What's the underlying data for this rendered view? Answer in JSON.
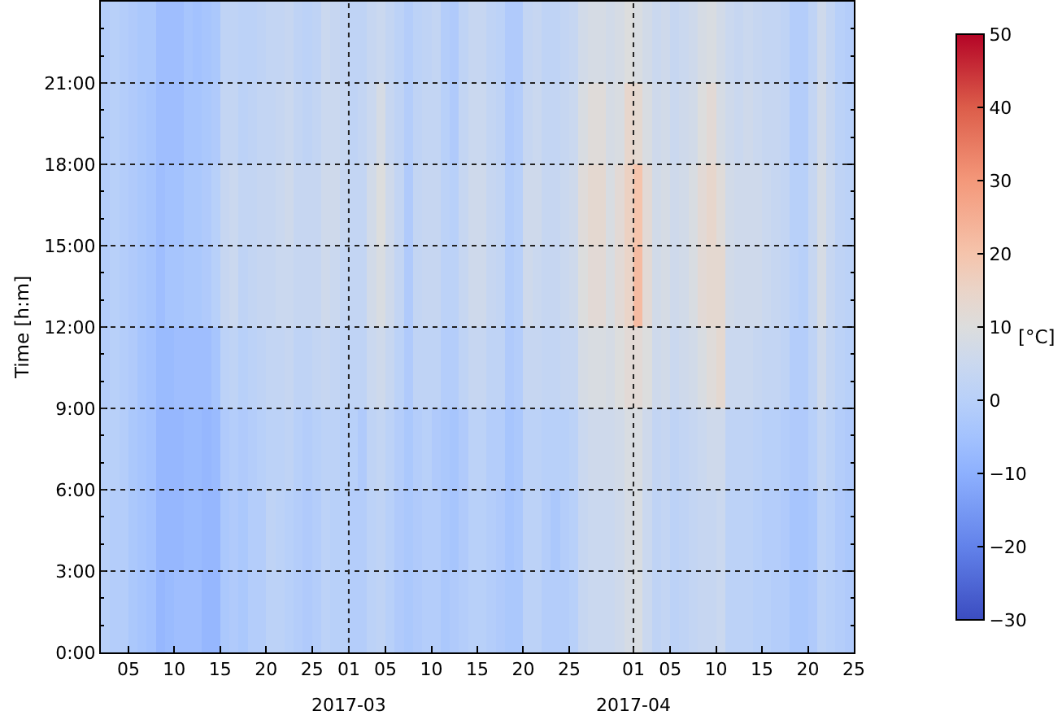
{
  "chart_data": {
    "type": "heatmap",
    "ylabel": "Time [h:m]",
    "clabel": "[°C]",
    "grid": true,
    "x": [
      "2017-02-02T12:00",
      "2017-02-03T12:00",
      "2017-02-04T12:00",
      "2017-02-05T12:00",
      "2017-02-06T12:00",
      "2017-02-07T12:00",
      "2017-02-08T12:00",
      "2017-02-09T12:00",
      "2017-02-10T12:00",
      "2017-02-11T12:00",
      "2017-02-12T12:00",
      "2017-02-13T12:00",
      "2017-02-14T12:00",
      "2017-02-15T12:00",
      "2017-02-16T12:00",
      "2017-02-17T12:00",
      "2017-02-18T12:00",
      "2017-02-19T12:00",
      "2017-02-20T12:00",
      "2017-02-21T12:00",
      "2017-02-22T12:00",
      "2017-02-23T12:00",
      "2017-02-24T12:00",
      "2017-02-25T12:00",
      "2017-02-26T12:00",
      "2017-02-27T12:00",
      "2017-02-28T12:00",
      "2017-03-01T12:00",
      "2017-03-02T12:00",
      "2017-03-03T12:00",
      "2017-03-04T12:00",
      "2017-03-05T12:00",
      "2017-03-06T12:00",
      "2017-03-07T12:00",
      "2017-03-08T12:00",
      "2017-03-09T12:00",
      "2017-03-10T12:00",
      "2017-03-11T12:00",
      "2017-03-12T12:00",
      "2017-03-13T12:00",
      "2017-03-14T12:00",
      "2017-03-15T12:00",
      "2017-03-16T12:00",
      "2017-03-17T12:00",
      "2017-03-18T12:00",
      "2017-03-19T12:00",
      "2017-03-20T12:00",
      "2017-03-21T12:00",
      "2017-03-22T12:00",
      "2017-03-23T12:00",
      "2017-03-24T12:00",
      "2017-03-25T12:00",
      "2017-03-26T12:00",
      "2017-03-27T12:00",
      "2017-03-28T12:00",
      "2017-03-29T12:00",
      "2017-03-30T12:00",
      "2017-03-31T12:00",
      "2017-04-01T12:00",
      "2017-04-02T12:00",
      "2017-04-03T12:00",
      "2017-04-04T12:00",
      "2017-04-05T12:00",
      "2017-04-06T12:00",
      "2017-04-07T12:00",
      "2017-04-08T12:00",
      "2017-04-09T12:00",
      "2017-04-10T12:00",
      "2017-04-11T12:00",
      "2017-04-12T12:00",
      "2017-04-13T12:00",
      "2017-04-14T12:00",
      "2017-04-15T12:00",
      "2017-04-16T12:00",
      "2017-04-17T12:00",
      "2017-04-18T12:00",
      "2017-04-19T12:00",
      "2017-04-20T12:00",
      "2017-04-21T12:00",
      "2017-04-22T12:00",
      "2017-04-23T12:00",
      "2017-04-24T12:00"
    ],
    "cells": [
      [
        -1,
        0,
        -1,
        -2,
        -3,
        -3,
        -6,
        -6,
        -6,
        -4,
        -5,
        -4,
        -3,
        2,
        2,
        1,
        1,
        2,
        3,
        3,
        4,
        2,
        1,
        2,
        5,
        4,
        3,
        2,
        2,
        4,
        5,
        3,
        1,
        -1,
        1,
        2,
        3,
        -1,
        -2,
        2,
        4,
        4,
        2,
        1,
        -2,
        -2,
        3,
        4,
        2,
        2,
        3,
        4,
        7,
        8,
        8,
        7,
        8,
        10,
        9,
        7,
        5,
        6,
        4,
        5,
        6,
        8,
        9,
        7,
        5,
        4,
        5,
        4,
        3,
        3,
        2,
        -1,
        -1,
        2,
        6,
        3,
        0,
        -1
      ],
      [
        -1,
        0,
        -1,
        -2,
        -3,
        -4,
        -6,
        -6,
        -6,
        -4,
        -4,
        -3,
        -2,
        3,
        3,
        1,
        2,
        3,
        3,
        4,
        5,
        3,
        2,
        3,
        5,
        5,
        4,
        2,
        3,
        5,
        8,
        4,
        2,
        -1,
        2,
        3,
        3,
        0,
        -2,
        3,
        5,
        5,
        3,
        2,
        -2,
        -1,
        4,
        5,
        3,
        3,
        4,
        5,
        9,
        11,
        11,
        8,
        9,
        14,
        13,
        9,
        6,
        7,
        5,
        6,
        7,
        10,
        12,
        8,
        6,
        5,
        6,
        5,
        4,
        4,
        3,
        -1,
        -1,
        3,
        7,
        4,
        1,
        0
      ],
      [
        -1,
        0,
        -1,
        -2,
        -3,
        -4,
        -6,
        -5,
        -5,
        -3,
        -3,
        -2,
        0,
        4,
        5,
        3,
        3,
        4,
        4,
        5,
        6,
        4,
        4,
        4,
        6,
        6,
        4,
        3,
        3,
        7,
        10,
        6,
        3,
        -2,
        3,
        4,
        4,
        1,
        0,
        4,
        6,
        6,
        4,
        3,
        -1,
        0,
        6,
        6,
        4,
        4,
        5,
        6,
        11,
        13,
        13,
        9,
        12,
        16,
        20,
        12,
        7,
        8,
        6,
        7,
        9,
        12,
        14,
        11,
        7,
        6,
        6,
        6,
        5,
        4,
        3,
        0,
        0,
        4,
        8,
        5,
        2,
        1
      ],
      [
        -1,
        0,
        -1,
        -2,
        -3,
        -4,
        -6,
        -4,
        -4,
        -3,
        -3,
        -2,
        0,
        4,
        5,
        2,
        3,
        4,
        4,
        5,
        5,
        4,
        4,
        4,
        6,
        5,
        3,
        3,
        3,
        7,
        9,
        6,
        3,
        -2,
        3,
        4,
        4,
        1,
        1,
        4,
        6,
        6,
        4,
        3,
        -1,
        0,
        6,
        5,
        4,
        4,
        5,
        6,
        10,
        12,
        12,
        9,
        12,
        15,
        22,
        12,
        7,
        8,
        6,
        7,
        9,
        12,
        13,
        13,
        7,
        6,
        6,
        6,
        5,
        4,
        3,
        1,
        0,
        4,
        8,
        4,
        2,
        1
      ],
      [
        -1,
        0,
        -1,
        -2,
        -4,
        -5,
        -7,
        -7,
        -6,
        -6,
        -6,
        -6,
        -4,
        1,
        2,
        0,
        1,
        2,
        3,
        3,
        4,
        2,
        2,
        3,
        4,
        3,
        2,
        2,
        2,
        5,
        6,
        4,
        1,
        -2,
        2,
        2,
        2,
        -1,
        -1,
        2,
        4,
        4,
        2,
        2,
        -2,
        -1,
        4,
        4,
        3,
        3,
        4,
        4,
        8,
        9,
        9,
        8,
        10,
        12,
        12,
        10,
        6,
        7,
        5,
        6,
        7,
        9,
        11,
        13,
        5,
        5,
        5,
        4,
        3,
        3,
        2,
        -1,
        -1,
        2,
        6,
        3,
        1,
        0
      ],
      [
        0,
        0,
        -1,
        -3,
        -4,
        -5,
        -8,
        -8,
        -8,
        -7,
        -7,
        -8,
        -7,
        -2,
        -1,
        -2,
        -1,
        0,
        1,
        1,
        2,
        0,
        -1,
        0,
        1,
        1,
        0,
        0,
        -2,
        2,
        3,
        1,
        -1,
        -3,
        -1,
        0,
        -2,
        -3,
        -4,
        -2,
        1,
        1,
        -1,
        -1,
        -4,
        -3,
        1,
        1,
        0,
        0,
        0,
        1,
        5,
        6,
        6,
        6,
        7,
        9,
        9,
        6,
        3,
        4,
        2,
        3,
        4,
        5,
        6,
        6,
        2,
        2,
        2,
        1,
        0,
        0,
        -1,
        -2,
        -2,
        0,
        3,
        1,
        -1,
        -2
      ],
      [
        0,
        -1,
        -1,
        -3,
        -4,
        -5,
        -8,
        -8,
        -8,
        -7,
        -7,
        -8,
        -8,
        -3,
        -2,
        -3,
        -1,
        -1,
        2,
        1,
        0,
        -1,
        -2,
        -1,
        1,
        0,
        0,
        -1,
        -1,
        1,
        2,
        0,
        -2,
        -3,
        -2,
        -1,
        -1,
        -3,
        -4,
        -2,
        0,
        0,
        -1,
        -2,
        -4,
        -3,
        1,
        1,
        -1,
        -3,
        -1,
        0,
        4,
        5,
        5,
        5,
        6,
        8,
        9,
        5,
        2,
        3,
        1,
        2,
        3,
        4,
        4,
        5,
        1,
        1,
        1,
        0,
        -1,
        -1,
        -2,
        -4,
        -4,
        -3,
        1,
        0,
        -2,
        -3
      ],
      [
        0,
        -1,
        -1,
        -3,
        -4,
        -5,
        -8,
        -7,
        -6,
        -6,
        -6,
        -8,
        -8,
        -3,
        -2,
        -3,
        -1,
        -1,
        1,
        1,
        0,
        -1,
        -2,
        -1,
        1,
        0,
        0,
        -1,
        -1,
        1,
        2,
        0,
        -2,
        -3,
        -2,
        -1,
        -1,
        -3,
        -2,
        -1,
        0,
        0,
        -1,
        -2,
        -3,
        -3,
        1,
        1,
        -1,
        -1,
        -1,
        0,
        4,
        5,
        5,
        5,
        6,
        8,
        9,
        5,
        2,
        3,
        1,
        2,
        3,
        4,
        4,
        5,
        1,
        1,
        1,
        0,
        0,
        -1,
        -1,
        -3,
        -3,
        -2,
        1,
        0,
        -1,
        -2
      ]
    ],
    "xlim": [
      "2017-02-02",
      "2017-04-25"
    ],
    "xticks": [
      {
        "value": "2017-02-05",
        "label": "05"
      },
      {
        "value": "2017-02-10",
        "label": "10"
      },
      {
        "value": "2017-02-15",
        "label": "15"
      },
      {
        "value": "2017-02-20",
        "label": "20"
      },
      {
        "value": "2017-02-25",
        "label": "25"
      },
      {
        "value": "2017-03-01",
        "label": "01"
      },
      {
        "value": "2017-03-05",
        "label": "05"
      },
      {
        "value": "2017-03-10",
        "label": "10"
      },
      {
        "value": "2017-03-15",
        "label": "15"
      },
      {
        "value": "2017-03-20",
        "label": "20"
      },
      {
        "value": "2017-03-25",
        "label": "25"
      },
      {
        "value": "2017-04-01",
        "label": "01"
      },
      {
        "value": "2017-04-05",
        "label": "05"
      },
      {
        "value": "2017-04-10",
        "label": "10"
      },
      {
        "value": "2017-04-15",
        "label": "15"
      },
      {
        "value": "2017-04-20",
        "label": "20"
      },
      {
        "value": "2017-04-25",
        "label": "25"
      }
    ],
    "x2lim": [
      "2017-02-02",
      "2017-04-25"
    ],
    "x2ticks": [
      {
        "value": "2017-03-01",
        "label": "2017-03"
      },
      {
        "value": "2017-04-01",
        "label": "2017-04"
      }
    ],
    "ylim": [
      0,
      24
    ],
    "yticks": [
      {
        "value": 0,
        "label": "0:00"
      },
      {
        "value": 1,
        "label": null
      },
      {
        "value": 2,
        "label": null
      },
      {
        "value": 3,
        "label": "3:00"
      },
      {
        "value": 4,
        "label": null
      },
      {
        "value": 5,
        "label": null
      },
      {
        "value": 6,
        "label": "6:00"
      },
      {
        "value": 7,
        "label": null
      },
      {
        "value": 8,
        "label": null
      },
      {
        "value": 9,
        "label": "9:00"
      },
      {
        "value": 10,
        "label": null
      },
      {
        "value": 11,
        "label": null
      },
      {
        "value": 12,
        "label": "12:00"
      },
      {
        "value": 13,
        "label": null
      },
      {
        "value": 14,
        "label": null
      },
      {
        "value": 15,
        "label": "15:00"
      },
      {
        "value": 16,
        "label": null
      },
      {
        "value": 17,
        "label": null
      },
      {
        "value": 18,
        "label": "18:00"
      },
      {
        "value": 19,
        "label": null
      },
      {
        "value": 20,
        "label": null
      },
      {
        "value": 21,
        "label": "21:00"
      },
      {
        "value": 22,
        "label": null
      },
      {
        "value": 23,
        "label": null
      }
    ],
    "clim": [
      -30,
      50
    ],
    "cticks": [
      -30,
      -20,
      -10,
      0,
      10,
      20,
      30,
      40,
      50
    ]
  }
}
